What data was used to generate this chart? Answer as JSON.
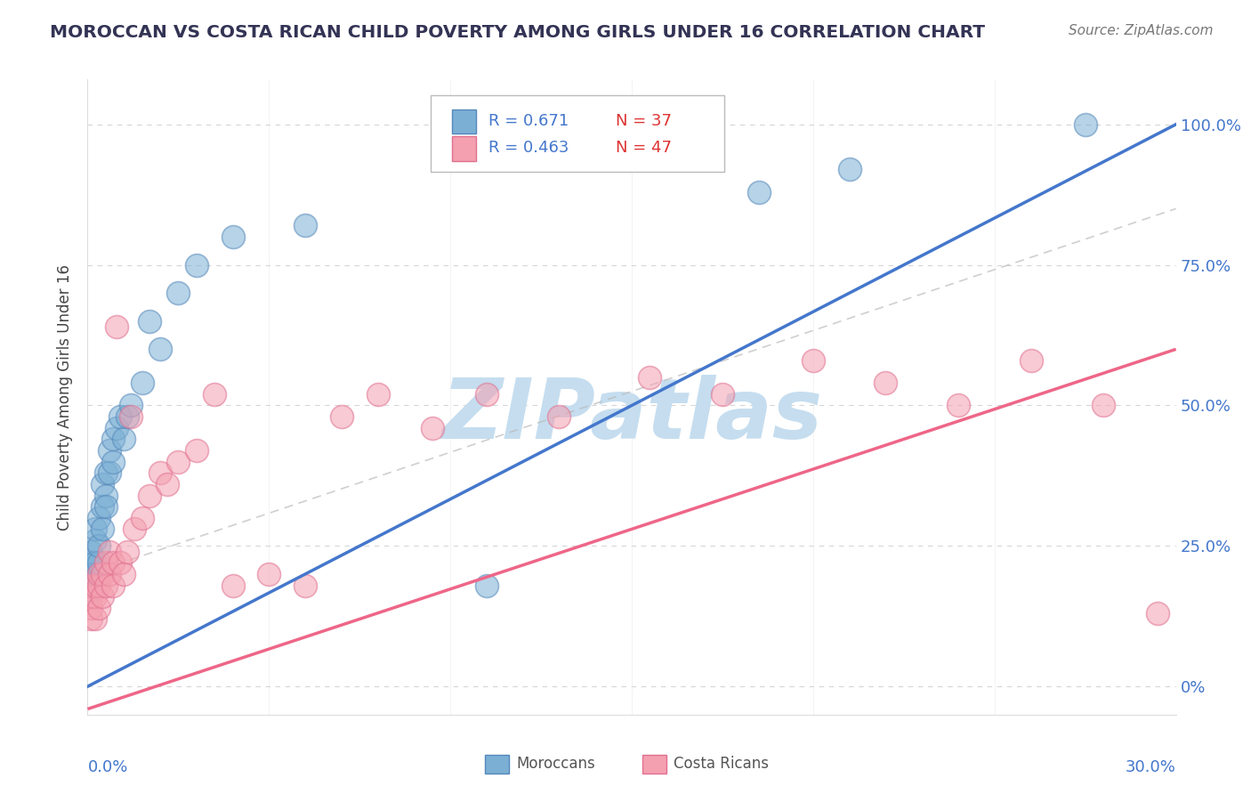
{
  "title": "MOROCCAN VS COSTA RICAN CHILD POVERTY AMONG GIRLS UNDER 16 CORRELATION CHART",
  "source": "Source: ZipAtlas.com",
  "ylabel": "Child Poverty Among Girls Under 16",
  "ytick_vals": [
    0.0,
    0.25,
    0.5,
    0.75,
    1.0
  ],
  "ytick_labels": [
    "0%",
    "25.0%",
    "50.0%",
    "75.0%",
    "100.0%"
  ],
  "xlim": [
    0,
    0.3
  ],
  "ylim": [
    -0.05,
    1.08
  ],
  "legend_moroccan": "R = 0.671   N = 37",
  "legend_costarican": "R = 0.463   N = 47",
  "moroccan_color": "#7BAFD4",
  "costarican_color": "#F4A0B0",
  "moroccan_edge_color": "#5588BB",
  "costarican_edge_color": "#E07090",
  "regression_moroccan_color": "#4477CC",
  "regression_costarican_color": "#EE6688",
  "ref_line_color": "#CCCCCC",
  "watermark_text": "ZIPatlas",
  "watermark_color": "#C5DDEF",
  "title_color": "#333355",
  "axis_label_color": "#4477CC",
  "source_color": "#777777",
  "legend_text_color": "#333355",
  "legend_r_color": "#4477CC",
  "legend_n_color": "#EE4444",
  "moroccan_x": [
    0.001,
    0.001,
    0.001,
    0.001,
    0.002,
    0.002,
    0.002,
    0.002,
    0.003,
    0.003,
    0.003,
    0.004,
    0.004,
    0.004,
    0.005,
    0.005,
    0.005,
    0.006,
    0.006,
    0.007,
    0.007,
    0.008,
    0.009,
    0.01,
    0.011,
    0.012,
    0.015,
    0.017,
    0.02,
    0.025,
    0.03,
    0.04,
    0.06,
    0.11,
    0.185,
    0.21,
    0.275
  ],
  "moroccan_y": [
    0.17,
    0.2,
    0.22,
    0.24,
    0.2,
    0.22,
    0.26,
    0.28,
    0.22,
    0.25,
    0.3,
    0.28,
    0.32,
    0.36,
    0.34,
    0.38,
    0.32,
    0.38,
    0.42,
    0.4,
    0.44,
    0.46,
    0.48,
    0.44,
    0.48,
    0.5,
    0.54,
    0.65,
    0.6,
    0.7,
    0.75,
    0.8,
    0.82,
    0.18,
    0.88,
    0.92,
    1.0
  ],
  "costarican_x": [
    0.001,
    0.001,
    0.001,
    0.001,
    0.002,
    0.002,
    0.002,
    0.003,
    0.003,
    0.003,
    0.004,
    0.004,
    0.005,
    0.005,
    0.006,
    0.006,
    0.007,
    0.007,
    0.008,
    0.009,
    0.01,
    0.011,
    0.012,
    0.013,
    0.015,
    0.017,
    0.02,
    0.022,
    0.025,
    0.03,
    0.035,
    0.04,
    0.05,
    0.06,
    0.07,
    0.08,
    0.095,
    0.11,
    0.13,
    0.155,
    0.175,
    0.2,
    0.22,
    0.24,
    0.26,
    0.28,
    0.295
  ],
  "costarican_y": [
    0.12,
    0.14,
    0.16,
    0.18,
    0.12,
    0.16,
    0.18,
    0.14,
    0.18,
    0.2,
    0.16,
    0.2,
    0.18,
    0.22,
    0.2,
    0.24,
    0.18,
    0.22,
    0.64,
    0.22,
    0.2,
    0.24,
    0.48,
    0.28,
    0.3,
    0.34,
    0.38,
    0.36,
    0.4,
    0.42,
    0.52,
    0.18,
    0.2,
    0.18,
    0.48,
    0.52,
    0.46,
    0.52,
    0.48,
    0.55,
    0.52,
    0.58,
    0.54,
    0.5,
    0.58,
    0.5,
    0.13
  ],
  "blue_line_x0": 0.0,
  "blue_line_y0": 0.0,
  "blue_line_x1": 0.3,
  "blue_line_y1": 1.0,
  "pink_line_x0": 0.0,
  "pink_line_y0": -0.04,
  "pink_line_x1": 0.3,
  "pink_line_y1": 0.6,
  "ref_line_x0": 0.0,
  "ref_line_y0": 0.2,
  "ref_line_x1": 0.3,
  "ref_line_y1": 0.85
}
